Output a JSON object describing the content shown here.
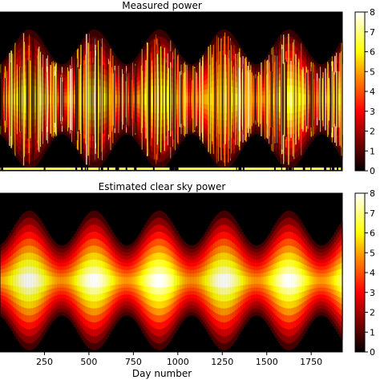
{
  "chart_data": [
    {
      "type": "heatmap",
      "title": "Measured power",
      "x": {
        "label": "",
        "range": [
          0,
          1925
        ],
        "ticks": []
      },
      "y": {
        "label": "",
        "ticks": []
      },
      "colormap": "hot",
      "colorbar": {
        "range": [
          0,
          8
        ],
        "ticks": [
          "0",
          "1",
          "2",
          "3",
          "4",
          "5",
          "6",
          "7",
          "8"
        ]
      },
      "pattern": {
        "period_days": 365,
        "first_summer_peak_day": 160,
        "noisy": true,
        "missing_day_marks_color": "#ffff40"
      }
    },
    {
      "type": "heatmap",
      "title": "Estimated clear sky power",
      "x": {
        "label": "Day number",
        "range": [
          0,
          1925
        ],
        "ticks": [
          250,
          500,
          750,
          1000,
          1250,
          1500,
          1750
        ]
      },
      "y": {
        "label": "",
        "ticks": []
      },
      "colormap": "hot",
      "colorbar": {
        "range": [
          0,
          8
        ],
        "ticks": [
          "0",
          "1",
          "2",
          "3",
          "4",
          "5",
          "6",
          "7",
          "8"
        ]
      },
      "pattern": {
        "period_days": 365,
        "first_summer_peak_day": 160,
        "noisy": false
      }
    }
  ]
}
